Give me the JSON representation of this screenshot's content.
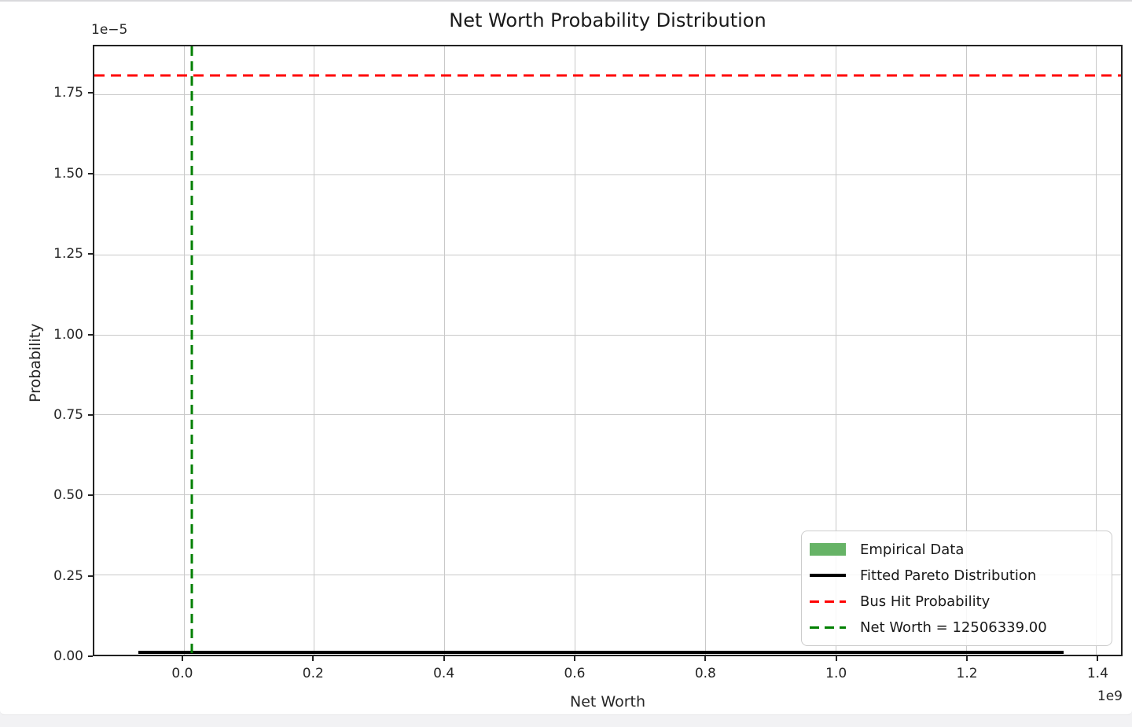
{
  "chart_data": {
    "type": "histogram",
    "title": "Net Worth Probability Distribution",
    "xlabel": "Net Worth",
    "ylabel": "Probability",
    "x_offset_label": "1e9",
    "y_offset_label": "1e−5",
    "grid": true,
    "xlim": [
      -137000000,
      1438000000
    ],
    "ylim": [
      0,
      1.9e-05
    ],
    "x_ticks": {
      "values": [
        0,
        200000000,
        400000000,
        600000000,
        800000000,
        1000000000,
        1200000000,
        1400000000
      ],
      "labels": [
        "0.0",
        "0.2",
        "0.4",
        "0.6",
        "0.8",
        "1.0",
        "1.2",
        "1.4"
      ]
    },
    "y_ticks": {
      "values": [
        0,
        2.5e-06,
        5e-06,
        7.5e-06,
        1e-05,
        1.25e-05,
        1.5e-05,
        1.75e-05
      ],
      "labels": [
        "0.00",
        "0.25",
        "0.50",
        "0.75",
        "1.00",
        "1.25",
        "1.50",
        "1.75"
      ]
    },
    "series": [
      {
        "name": "Empirical Data",
        "type": "histogram",
        "color": "#66b366",
        "note_visible_height": 0
      },
      {
        "name": "Fitted Pareto Distribution",
        "type": "line",
        "color": "#000000",
        "x_start": -69000000,
        "x_end": 1350000000,
        "y": 0
      },
      {
        "name": "Bus Hit Probability",
        "type": "hline",
        "style": "dashed",
        "color": "#ff0000",
        "y": 1.81e-05
      },
      {
        "name": "Net Worth = 12506339.00",
        "type": "vline",
        "style": "dashed",
        "color": "#008000",
        "x": 12506339
      }
    ],
    "legend": {
      "position": "lower right",
      "entries": [
        {
          "label": "Empirical Data",
          "swatch": "patch",
          "color": "#66b366"
        },
        {
          "label": "Fitted Pareto Distribution",
          "swatch": "solid",
          "color": "#000000"
        },
        {
          "label": "Bus Hit Probability",
          "swatch": "dashed",
          "color": "#ff0000"
        },
        {
          "label": "Net Worth = 12506339.00",
          "swatch": "dashed",
          "color": "#008000"
        }
      ]
    }
  }
}
